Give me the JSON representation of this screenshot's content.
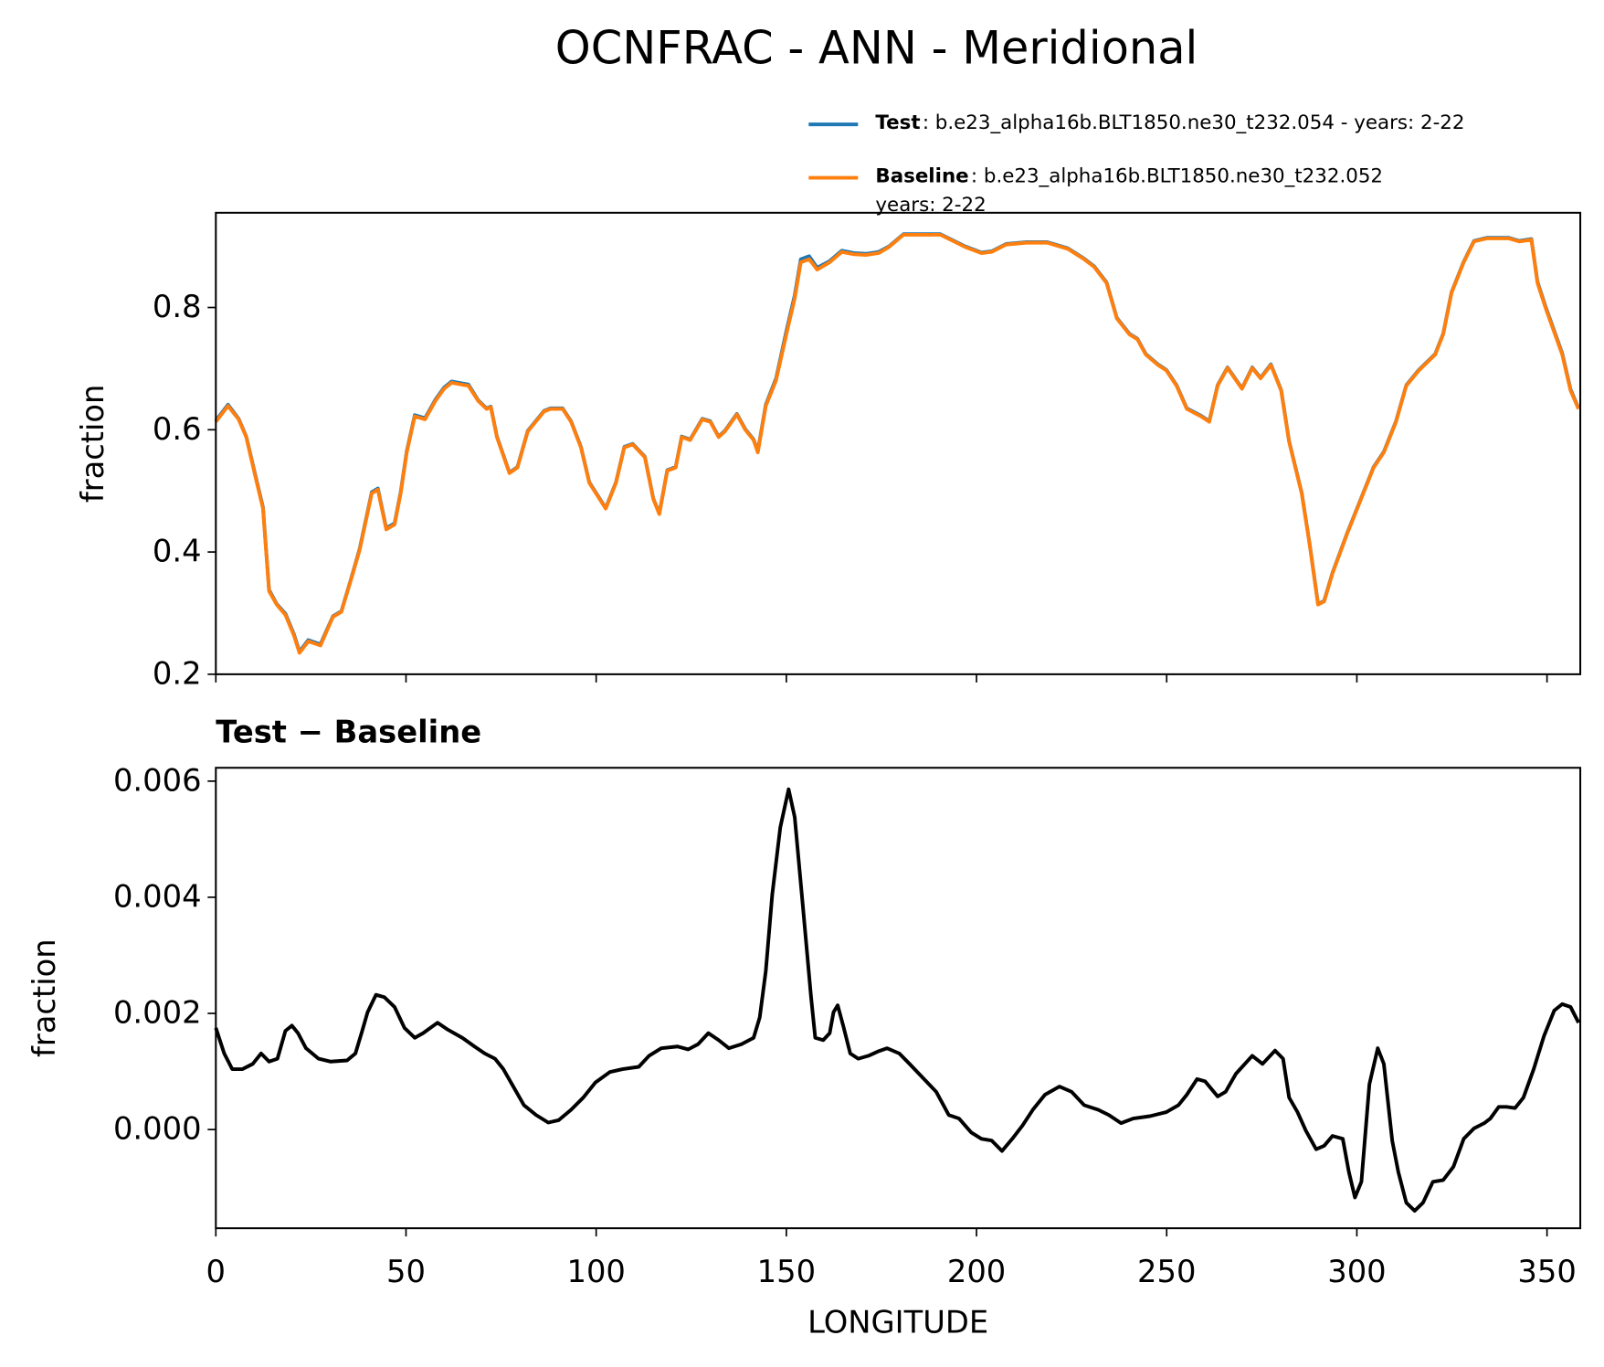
{
  "chart_data": [
    {
      "type": "line",
      "title": "OCNFRAC - ANN - Meridional",
      "ylabel": "fraction",
      "x": [
        0,
        3.2,
        6,
        8,
        10.3,
        12.4,
        14,
        16,
        18.3,
        20.5,
        22,
        24.3,
        27.5,
        30.8,
        33,
        35.6,
        37.8,
        41,
        42.6,
        44.8,
        47,
        48.6,
        50.2,
        52.3,
        55,
        57.7,
        60,
        62,
        66.4,
        69,
        71.2,
        72.3,
        73.9,
        77.2,
        79.3,
        82,
        86.3,
        88,
        91.2,
        93.4,
        96,
        98.2,
        102.5,
        105.2,
        107.4,
        109.6,
        112.8,
        115,
        116.6,
        118.7,
        120.9,
        122.5,
        124.7,
        127.9,
        130,
        132.2,
        133.8,
        137,
        139.2,
        141.4,
        142.5,
        144.6,
        147.3,
        150,
        152.2,
        153.8,
        156,
        158.1,
        161.4,
        164.6,
        167.8,
        171.1,
        174.3,
        177,
        180.8,
        185.1,
        190.5,
        197,
        201.3,
        204,
        207.8,
        213.2,
        218.6,
        224,
        228.3,
        231,
        234.2,
        236.9,
        240.2,
        242.3,
        244.5,
        247.7,
        249.9,
        252.6,
        255.3,
        259,
        261.2,
        263.4,
        266,
        269.8,
        272.5,
        274.7,
        277.4,
        280.1,
        282.2,
        285.5,
        287.6,
        289.8,
        291.4,
        293.6,
        297.4,
        301.7,
        304.4,
        307.1,
        310.3,
        313,
        316.3,
        320.6,
        322.7,
        324.9,
        328.1,
        330.8,
        334.1,
        340,
        342.7,
        345.9,
        347.5,
        349.7,
        352.4,
        354,
        356.2,
        358.3
      ],
      "series": [
        {
          "name": "Test",
          "description": [
            ": b.e23_alpha16b.BLT1850.ne30_t232.054 - years: 2-22"
          ],
          "color": "#1f77b4",
          "values": [
            0.615,
            0.641,
            0.618,
            0.589,
            0.528,
            0.473,
            0.338,
            0.315,
            0.299,
            0.266,
            0.237,
            0.256,
            0.249,
            0.295,
            0.303,
            0.357,
            0.405,
            0.498,
            0.504,
            0.439,
            0.447,
            0.498,
            0.565,
            0.624,
            0.619,
            0.649,
            0.669,
            0.679,
            0.674,
            0.648,
            0.635,
            0.638,
            0.589,
            0.53,
            0.539,
            0.598,
            0.631,
            0.635,
            0.635,
            0.614,
            0.572,
            0.514,
            0.472,
            0.514,
            0.572,
            0.577,
            0.556,
            0.488,
            0.463,
            0.534,
            0.539,
            0.589,
            0.584,
            0.618,
            0.614,
            0.589,
            0.598,
            0.626,
            0.601,
            0.584,
            0.565,
            0.641,
            0.684,
            0.761,
            0.82,
            0.879,
            0.884,
            0.865,
            0.876,
            0.893,
            0.889,
            0.888,
            0.891,
            0.9,
            0.92,
            0.92,
            0.92,
            0.9,
            0.89,
            0.892,
            0.904,
            0.907,
            0.907,
            0.897,
            0.88,
            0.867,
            0.841,
            0.783,
            0.757,
            0.749,
            0.724,
            0.707,
            0.698,
            0.673,
            0.635,
            0.623,
            0.614,
            0.673,
            0.702,
            0.668,
            0.702,
            0.685,
            0.707,
            0.665,
            0.581,
            0.497,
            0.413,
            0.315,
            0.32,
            0.366,
            0.43,
            0.497,
            0.539,
            0.564,
            0.614,
            0.673,
            0.698,
            0.724,
            0.757,
            0.825,
            0.875,
            0.909,
            0.914,
            0.914,
            0.909,
            0.912,
            0.842,
            0.8,
            0.753,
            0.725,
            0.666,
            0.635
          ]
        },
        {
          "name": "Baseline",
          "description": [
            ": b.e23_alpha16b.BLT1850.ne30_t232.052",
            "years: 2-22"
          ],
          "color": "#ff7f0e",
          "values": [
            0.613,
            0.639,
            0.617,
            0.588,
            0.526,
            0.471,
            0.336,
            0.314,
            0.297,
            0.264,
            0.235,
            0.254,
            0.247,
            0.294,
            0.302,
            0.356,
            0.403,
            0.496,
            0.502,
            0.437,
            0.445,
            0.496,
            0.563,
            0.622,
            0.617,
            0.647,
            0.667,
            0.677,
            0.672,
            0.647,
            0.634,
            0.637,
            0.588,
            0.529,
            0.538,
            0.597,
            0.63,
            0.634,
            0.634,
            0.613,
            0.571,
            0.513,
            0.471,
            0.513,
            0.571,
            0.576,
            0.555,
            0.487,
            0.462,
            0.533,
            0.538,
            0.588,
            0.583,
            0.617,
            0.613,
            0.588,
            0.597,
            0.625,
            0.6,
            0.583,
            0.563,
            0.639,
            0.681,
            0.756,
            0.815,
            0.874,
            0.879,
            0.862,
            0.874,
            0.891,
            0.887,
            0.886,
            0.889,
            0.899,
            0.919,
            0.919,
            0.919,
            0.899,
            0.889,
            0.891,
            0.903,
            0.906,
            0.906,
            0.896,
            0.879,
            0.866,
            0.84,
            0.782,
            0.756,
            0.748,
            0.723,
            0.706,
            0.697,
            0.672,
            0.634,
            0.622,
            0.613,
            0.672,
            0.701,
            0.667,
            0.701,
            0.684,
            0.706,
            0.664,
            0.58,
            0.496,
            0.412,
            0.314,
            0.319,
            0.365,
            0.429,
            0.496,
            0.538,
            0.563,
            0.613,
            0.672,
            0.697,
            0.723,
            0.756,
            0.824,
            0.874,
            0.908,
            0.913,
            0.913,
            0.908,
            0.911,
            0.84,
            0.798,
            0.751,
            0.723,
            0.664,
            0.634
          ]
        }
      ],
      "xlim": [
        0,
        358.75
      ],
      "xticks": [
        0,
        50,
        100,
        150,
        200,
        250,
        300,
        350
      ],
      "show_xtick_labels": false,
      "ylim": [
        0.2,
        0.955
      ],
      "yticks": [
        0.2,
        0.4,
        0.6,
        0.8
      ]
    },
    {
      "type": "line",
      "title": "Test − Baseline",
      "xlabel": "LONGITUDE",
      "ylabel": "fraction",
      "x": [
        0,
        2.2,
        4.3,
        7,
        9.7,
        11.9,
        14,
        16.2,
        18.3,
        20,
        21.6,
        23.7,
        27,
        30.2,
        34.5,
        36.7,
        38.3,
        39.9,
        42.1,
        44.3,
        47,
        49.6,
        52.3,
        54.5,
        58.3,
        61,
        64.8,
        68,
        70.7,
        73.4,
        75.6,
        78.3,
        81,
        84.2,
        87.4,
        90.1,
        93.4,
        96.6,
        99.8,
        103.6,
        106.9,
        111.2,
        113.9,
        117.1,
        121.4,
        124.2,
        126.8,
        129.5,
        132.2,
        134.9,
        138.2,
        141.4,
        143,
        144.6,
        146.3,
        148.4,
        150.6,
        152.2,
        154.3,
        156.5,
        157.6,
        159.7,
        161.4,
        162.4,
        163.5,
        165.1,
        166.8,
        168.9,
        171.6,
        174.3,
        176.5,
        179.7,
        182.4,
        186.2,
        189.4,
        192.7,
        195.4,
        198.6,
        201.3,
        204,
        206.7,
        209.4,
        212.1,
        214.8,
        218,
        221.8,
        225,
        228.3,
        232,
        234.8,
        238,
        241.2,
        245.6,
        249.9,
        253.1,
        255.3,
        258,
        260.1,
        263.4,
        265.5,
        268.2,
        272.5,
        275.2,
        278.5,
        280.6,
        282.2,
        284.4,
        286.6,
        289.3,
        291.4,
        293.6,
        296.3,
        297.9,
        299.5,
        301.2,
        303.3,
        305.5,
        307.1,
        309.3,
        310.9,
        313,
        315.2,
        317.4,
        320,
        322.7,
        325.4,
        328.1,
        330.8,
        333.5,
        335.1,
        337.3,
        339.4,
        341.6,
        343.8,
        346.5,
        349.2,
        351.9,
        354,
        356.2,
        358.3
      ],
      "series": [
        {
          "name": "Test − Baseline",
          "color": "#000000",
          "values": [
            0.00175,
            0.00131,
            0.00104,
            0.00104,
            0.00113,
            0.00131,
            0.00117,
            0.00122,
            0.0017,
            0.00179,
            0.00166,
            0.0014,
            0.00122,
            0.00117,
            0.00119,
            0.00131,
            0.00166,
            0.00202,
            0.00232,
            0.00228,
            0.00211,
            0.00175,
            0.00158,
            0.00166,
            0.00184,
            0.00172,
            0.00158,
            0.00143,
            0.00131,
            0.00122,
            0.00104,
            0.00073,
            0.00042,
            0.00025,
            0.00012,
            0.00016,
            0.00034,
            0.00055,
            0.00081,
            0.00099,
            0.00104,
            0.00108,
            0.00127,
            0.0014,
            0.00143,
            0.00138,
            0.00147,
            0.00166,
            0.00154,
            0.0014,
            0.00147,
            0.00158,
            0.00193,
            0.00273,
            0.00405,
            0.0052,
            0.00586,
            0.00538,
            0.00388,
            0.00228,
            0.00158,
            0.00154,
            0.00166,
            0.00202,
            0.00214,
            0.00175,
            0.00131,
            0.00122,
            0.00127,
            0.00135,
            0.0014,
            0.00131,
            0.00113,
            0.00087,
            0.00065,
            0.00025,
            0.00019,
            -5e-05,
            -0.00016,
            -0.00019,
            -0.00037,
            -0.00016,
            7e-05,
            0.00034,
            0.0006,
            0.00074,
            0.00065,
            0.00042,
            0.00034,
            0.00025,
            0.00011,
            0.00019,
            0.00023,
            0.0003,
            0.00042,
            0.0006,
            0.00087,
            0.00083,
            0.00057,
            0.00065,
            0.00096,
            0.00127,
            0.00113,
            0.00136,
            0.00122,
            0.00055,
            0.0003,
            -2e-05,
            -0.00034,
            -0.00028,
            -0.00011,
            -0.00016,
            -0.00073,
            -0.00117,
            -0.0009,
            0.00078,
            0.0014,
            0.00113,
            -0.00019,
            -0.00073,
            -0.00126,
            -0.0014,
            -0.00126,
            -0.0009,
            -0.00087,
            -0.00064,
            -0.00016,
            2e-05,
            0.00011,
            0.00019,
            0.00039,
            0.00039,
            0.00037,
            0.00055,
            0.00104,
            0.00161,
            0.00205,
            0.00216,
            0.00211,
            0.00184
          ]
        }
      ],
      "legend": false,
      "xlim": [
        0,
        358.75
      ],
      "xticks": [
        0,
        50,
        100,
        150,
        200,
        250,
        300,
        350
      ],
      "show_xtick_labels": true,
      "ylim": [
        -0.0017,
        0.00623
      ],
      "yticks": [
        {
          "value": 0,
          "label": "0.000"
        },
        {
          "value": 0.002,
          "label": "0.002"
        },
        {
          "value": 0.004,
          "label": "0.004"
        },
        {
          "value": 0.006,
          "label": "0.006"
        }
      ]
    }
  ]
}
